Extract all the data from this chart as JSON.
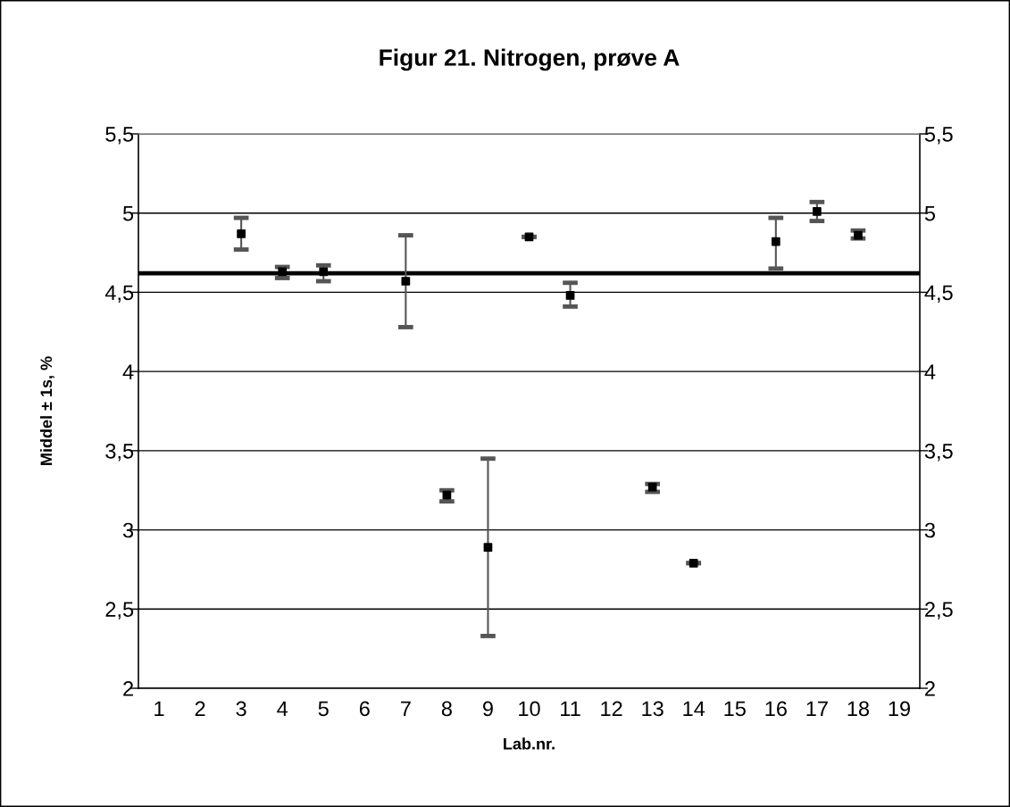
{
  "chart_data": {
    "type": "scatter",
    "title": "Figur 21. Nitrogen, prøve A",
    "xlabel": "Lab.nr.",
    "ylabel": "Middel ± 1s, %",
    "categories": [
      "1",
      "2",
      "3",
      "4",
      "5",
      "6",
      "7",
      "8",
      "9",
      "10",
      "11",
      "12",
      "13",
      "14",
      "15",
      "16",
      "17",
      "18",
      "19"
    ],
    "series": [
      {
        "color": "#000000",
        "values": [
          null,
          null,
          4.87,
          4.63,
          4.63,
          null,
          4.57,
          3.22,
          2.89,
          4.85,
          4.48,
          null,
          3.27,
          2.79,
          null,
          4.82,
          5.01,
          4.86,
          null
        ],
        "errors": [
          null,
          null,
          [
            4.77,
            4.97
          ],
          [
            4.59,
            4.66
          ],
          [
            4.57,
            4.67
          ],
          null,
          [
            4.28,
            4.86
          ],
          [
            3.18,
            3.25
          ],
          [
            2.33,
            3.45
          ],
          null,
          [
            4.41,
            4.56
          ],
          null,
          [
            3.24,
            3.29
          ],
          null,
          null,
          [
            4.65,
            4.97
          ],
          [
            4.95,
            5.07
          ],
          [
            4.84,
            4.89
          ],
          null
        ]
      }
    ],
    "ylim": [
      2,
      5.5
    ],
    "yticks": [
      2,
      {
        "value": 2.5,
        "label": "2,5"
      },
      3,
      {
        "value": 3.5,
        "label": "3,5"
      },
      4,
      {
        "value": 4.5,
        "label": "4,5"
      },
      5,
      {
        "value": 5.5,
        "label": "5,5"
      }
    ],
    "y2lim": [
      2,
      5.5
    ],
    "y2ticks": [
      2,
      {
        "value": 2.5,
        "label": "2,5"
      },
      3,
      {
        "value": 3.5,
        "label": "3,5"
      },
      4,
      {
        "value": 4.5,
        "label": "4,5"
      },
      5,
      {
        "value": 5.5,
        "label": "5,5"
      }
    ],
    "ref_lines": [
      {
        "axis": "y",
        "value": 4.62,
        "color": "#000000"
      }
    ],
    "grid": "y",
    "legend": false,
    "marker": "square"
  }
}
